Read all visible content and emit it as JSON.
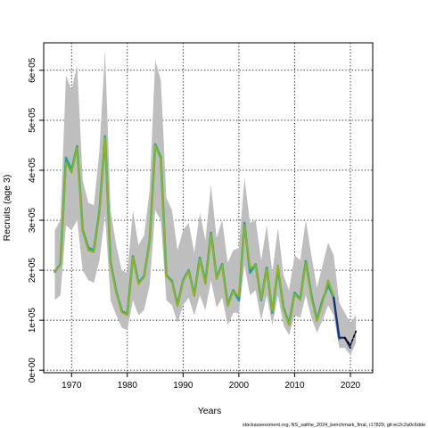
{
  "chart_data": {
    "type": "line",
    "title": "",
    "xlabel": "Years",
    "ylabel": "Recruits (age 3)",
    "xlim": [
      1965,
      2024
    ],
    "ylim": [
      -5000,
      655000
    ],
    "grid": true,
    "x_ticks": [
      1970,
      1980,
      1990,
      2000,
      2010,
      2020
    ],
    "x_tick_labels": [
      "1970",
      "1980",
      "1990",
      "2000",
      "2010",
      "2020"
    ],
    "y_ticks": [
      0,
      100000,
      200000,
      300000,
      400000,
      500000,
      600000
    ],
    "y_tick_labels": [
      "0e+00",
      "1e+05",
      "2e+05",
      "3e+05",
      "4e+05",
      "5e+05",
      "6e+05"
    ],
    "credit": "stockassessment.org, NS_saithe_2024_benchmark_final, r17829, git:ec2c2a0c6dde",
    "colors": {
      "band": "#bebebe",
      "line_teal": "#2aa198",
      "line_green": "#8bb523",
      "line_navy": "#1f2a7a",
      "line_black": "#000000"
    },
    "band": {
      "x": [
        1967,
        1968,
        1969,
        1970,
        1971,
        1972,
        1973,
        1974,
        1975,
        1976,
        1977,
        1978,
        1979,
        1980,
        1981,
        1982,
        1983,
        1984,
        1985,
        1986,
        1987,
        1988,
        1989,
        1990,
        1991,
        1992,
        1993,
        1994,
        1995,
        1996,
        1997,
        1998,
        1999,
        2000,
        2001,
        2002,
        2003,
        2004,
        2005,
        2006,
        2007,
        2008,
        2009,
        2010,
        2011,
        2012,
        2013,
        2014,
        2015,
        2016,
        2017,
        2018,
        2019,
        2020,
        2021
      ],
      "lower": [
        140000,
        150000,
        290000,
        280000,
        300000,
        200000,
        180000,
        175000,
        220000,
        310000,
        140000,
        110000,
        85000,
        80000,
        140000,
        110000,
        120000,
        170000,
        320000,
        300000,
        140000,
        130000,
        95000,
        130000,
        145000,
        110000,
        150000,
        120000,
        180000,
        125000,
        145000,
        90000,
        115000,
        115000,
        210000,
        150000,
        160000,
        100000,
        150000,
        90000,
        150000,
        90000,
        70000,
        110000,
        105000,
        150000,
        105000,
        75000,
        100000,
        130000,
        110000,
        45000,
        45000,
        30000,
        55000
      ],
      "upper": [
        280000,
        300000,
        590000,
        560000,
        610000,
        380000,
        335000,
        330000,
        440000,
        640000,
        320000,
        250000,
        200000,
        195000,
        320000,
        250000,
        270000,
        360000,
        620000,
        580000,
        345000,
        320000,
        240000,
        280000,
        295000,
        235000,
        315000,
        260000,
        370000,
        265000,
        300000,
        215000,
        240000,
        245000,
        385000,
        295000,
        300000,
        220000,
        290000,
        195000,
        285000,
        190000,
        160000,
        230000,
        220000,
        300000,
        230000,
        165000,
        210000,
        255000,
        230000,
        135000,
        115000,
        95000,
        110000
      ]
    },
    "series": [
      {
        "x": [
          1967,
          1968,
          1969,
          1970,
          1971,
          1972,
          1973,
          1974,
          1975,
          1976,
          1977,
          1978,
          1979,
          1980,
          1981,
          1982,
          1983,
          1984,
          1985,
          1986,
          1987,
          1988,
          1989,
          1990,
          1991,
          1992,
          1993,
          1994,
          1995,
          1996,
          1997,
          1998,
          1999,
          2000,
          2001,
          2002,
          2003,
          2004,
          2005,
          2006,
          2007,
          2008,
          2009,
          2010,
          2011,
          2012,
          2013,
          2014,
          2015,
          2016,
          2017,
          2018
        ],
        "values": [
          197000,
          212000,
          425000,
          400000,
          448000,
          280000,
          245000,
          240000,
          318000,
          468000,
          215000,
          158000,
          118000,
          112000,
          228000,
          175000,
          188000,
          258000,
          452000,
          425000,
          190000,
          178000,
          130000,
          180000,
          200000,
          150000,
          225000,
          175000,
          275000,
          185000,
          212000,
          130000,
          160000,
          140000,
          295000,
          195000,
          212000,
          140000,
          205000,
          115000,
          205000,
          125000,
          92000,
          155000,
          142000,
          218000,
          150000,
          100000,
          140000,
          170000,
          145000,
          62000
        ]
      },
      {
        "x": [
          1967,
          1968,
          1969,
          1970,
          1971,
          1972,
          1973,
          1974,
          1975,
          1976,
          1977,
          1978,
          1979,
          1980,
          1981,
          1982,
          1983,
          1984,
          1985,
          1986,
          1987,
          1988,
          1989,
          1990,
          1991,
          1992,
          1993,
          1994,
          1995,
          1996,
          1997,
          1998,
          1999,
          2000,
          2001,
          2002,
          2003,
          2004,
          2005,
          2006,
          2007,
          2008,
          2009,
          2010,
          2011,
          2012,
          2013,
          2014,
          2015,
          2016,
          2017
        ],
        "values": [
          198000,
          210000,
          415000,
          395000,
          445000,
          278000,
          240000,
          236000,
          315000,
          465000,
          212000,
          155000,
          116000,
          110000,
          226000,
          172000,
          186000,
          256000,
          450000,
          422000,
          188000,
          176000,
          128000,
          178000,
          198000,
          148000,
          222000,
          172000,
          272000,
          182000,
          210000,
          128000,
          158000,
          148000,
          290000,
          205000,
          210000,
          142000,
          202000,
          118000,
          210000,
          122000,
          90000,
          152000,
          140000,
          215000,
          145000,
          98000,
          135000,
          180000,
          150000
        ]
      },
      {
        "x": [
          2017,
          2018,
          2019,
          2020
        ],
        "values": [
          145000,
          65000,
          65000,
          45000
        ]
      },
      {
        "x": [
          2019,
          2020,
          2021
        ],
        "values": [
          65000,
          50000,
          78000
        ]
      }
    ]
  }
}
